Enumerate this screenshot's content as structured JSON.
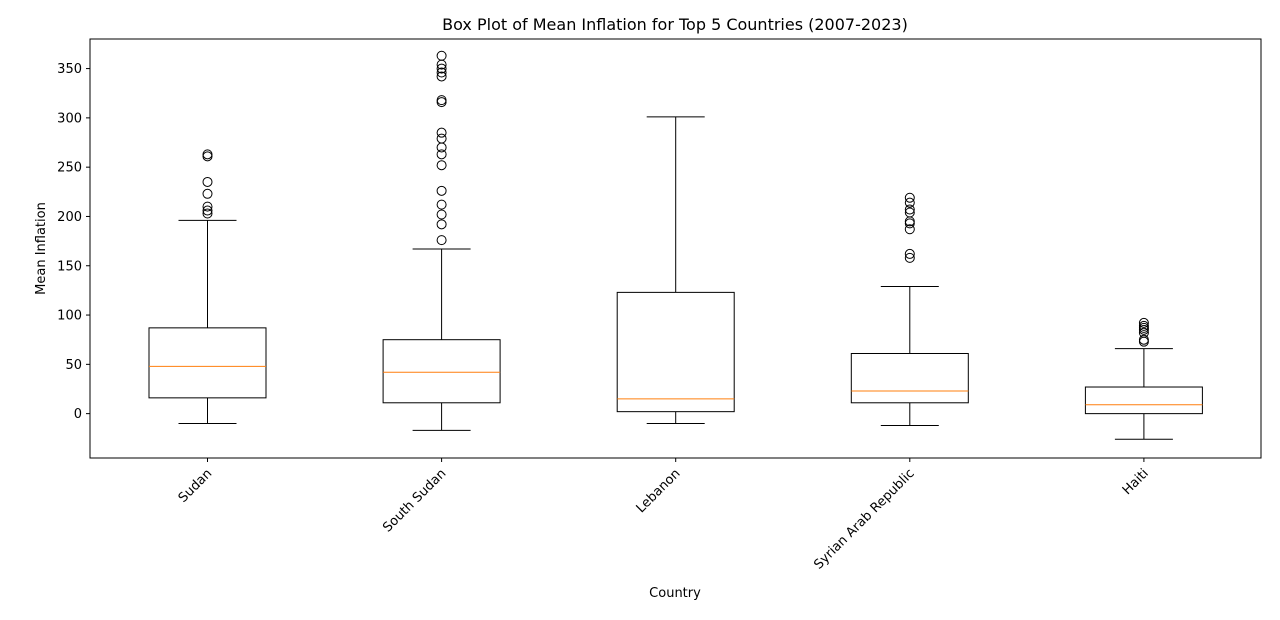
{
  "chart_data": {
    "type": "box",
    "title": "Box Plot of Mean Inflation for Top 5 Countries (2007-2023)",
    "xlabel": "Country",
    "ylabel": "Mean Inflation",
    "ylim": [
      -45,
      380
    ],
    "yticks": [
      0,
      50,
      100,
      150,
      200,
      250,
      300,
      350
    ],
    "grid": false,
    "legend": "none",
    "colors": {
      "box": "#000000",
      "median": "#ff7f0e",
      "flier": "#000000"
    },
    "categories": [
      "Sudan",
      "South Sudan",
      "Lebanon",
      "Syrian Arab Republic",
      "Haiti"
    ],
    "boxes": [
      {
        "category": "Sudan",
        "whisker_low": -10,
        "q1": 16,
        "median": 48,
        "q3": 87,
        "whisker_high": 196,
        "outliers": [
          203,
          206,
          210,
          223,
          235,
          261,
          263
        ]
      },
      {
        "category": "South Sudan",
        "whisker_low": -17,
        "q1": 11,
        "median": 42,
        "q3": 75,
        "whisker_high": 167,
        "outliers": [
          176,
          192,
          202,
          212,
          226,
          252,
          263,
          270,
          279,
          285,
          316,
          318,
          342,
          346,
          350,
          354,
          363
        ]
      },
      {
        "category": "Lebanon",
        "whisker_low": -10,
        "q1": 2,
        "median": 15,
        "q3": 123,
        "whisker_high": 301,
        "outliers": []
      },
      {
        "category": "Syrian Arab Republic",
        "whisker_low": -12,
        "q1": 11,
        "median": 23,
        "q3": 61,
        "whisker_high": 129,
        "outliers": [
          158,
          162,
          187,
          193,
          195,
          204,
          207,
          214,
          219
        ]
      },
      {
        "category": "Haiti",
        "whisker_low": -26,
        "q1": 0,
        "median": 9,
        "q3": 27,
        "whisker_high": 66,
        "outliers": [
          73,
          75,
          82,
          85,
          87,
          89,
          92
        ]
      }
    ]
  }
}
